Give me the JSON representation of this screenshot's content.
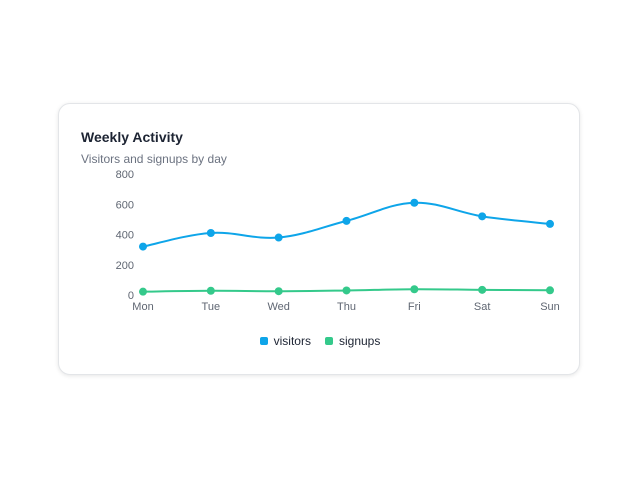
{
  "chart_data": {
    "type": "line",
    "title": "Weekly Activity",
    "subtitle": "Visitors and signups by day",
    "categories": [
      "Mon",
      "Tue",
      "Wed",
      "Thu",
      "Fri",
      "Sat",
      "Sun"
    ],
    "y_ticks": [
      "0",
      "200",
      "400",
      "600",
      "800"
    ],
    "ylim": [
      0,
      800
    ],
    "grid": false,
    "legend_position": "bottom",
    "series": [
      {
        "name": "visitors",
        "color": "#0ea5e9",
        "values": [
          320,
          410,
          380,
          490,
          610,
          520,
          470
        ]
      },
      {
        "name": "signups",
        "color": "#34c98b",
        "values": [
          22,
          28,
          25,
          30,
          38,
          34,
          31
        ]
      }
    ]
  }
}
